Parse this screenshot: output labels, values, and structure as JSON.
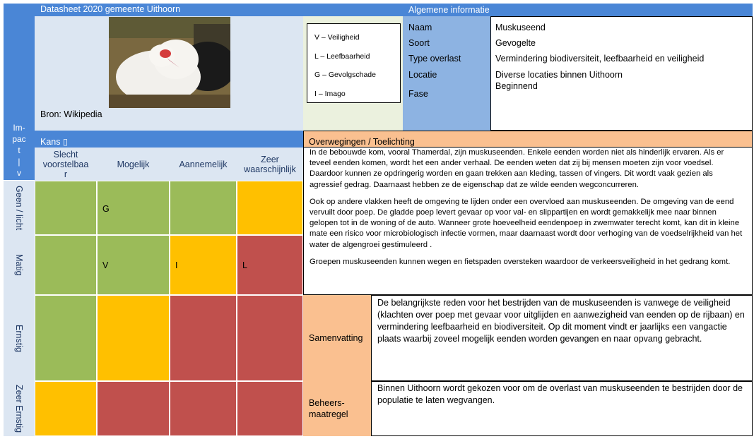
{
  "header": {
    "title": "Datasheet 2020 gemeente Uithoorn",
    "info_title": "Algemene informatie"
  },
  "photo": {
    "caption": "Bron: Wikipedia",
    "subject": "muskuseend-photo"
  },
  "legend": {
    "items": [
      "V – Veiligheid",
      "L – Leefbaarheid",
      "G – Gevolgschade",
      "I – Imago"
    ]
  },
  "info": {
    "labels": [
      "Naam",
      "Soort",
      "Type overlast",
      "Locatie",
      "Fase"
    ],
    "values": [
      "Muskuseend",
      "Gevogelte",
      "Vermindering biodiversiteit, leefbaarheid en veiligheid",
      "Diverse locaties binnen Uithoorn",
      "Beginnend"
    ]
  },
  "matrix": {
    "impact_label": "Im-\npac\nt\n|\nv",
    "kans_label": "Kans ▯",
    "columns": [
      "Slecht\nvoorstelbaa\nr",
      "Mogelijk",
      "Aannemelijk",
      "Zeer\nwaarschijnlijk"
    ],
    "rows": [
      "Geen / licht",
      "Matig",
      "Ernstig",
      "Zeer Ernstig"
    ],
    "cells": [
      [
        "",
        "G",
        "",
        ""
      ],
      [
        "",
        "V",
        "I",
        "L"
      ],
      [
        "",
        "",
        "",
        ""
      ],
      [
        "",
        "",
        "",
        ""
      ]
    ],
    "colors": {
      "green": "#9bbb59",
      "yellow": "#ffc000",
      "red": "#c0504d"
    }
  },
  "considerations": {
    "title": "Overwegingen / Toelichting",
    "paragraphs": [
      "In de bebouwde kom, vooral Thamerdal, zijn muskuseenden. Enkele eenden worden niet als hinderlijk ervaren. Als er teveel eenden komen, wordt het een ander verhaal. De eenden weten dat zij bij mensen moeten zijn voor voedsel. Daardoor kunnen ze opdringerig worden en gaan trekken aan kleding, tassen of vingers. Dit wordt vaak gezien als agressief gedrag. Daarnaast hebben ze de eigenschap dat ze wilde eenden wegconcurreren.",
      "Ook op andere vlakken heeft de omgeving te lijden onder een overvloed aan muskuseenden. De omgeving van de eend vervuilt door poep. De gladde poep levert gevaar op voor val- en slippartijen en wordt gemakkelijk mee naar binnen gelopen tot in de woning of de auto. Wanneer grote hoeveelheid eendenpoep in zwemwater terecht komt, kan dit in kleine mate een risico voor microbiologisch infectie vormen, maar daarnaast wordt door verhoging van de voedselrijkheid van het water de algengroei gestimuleerd .",
      "Groepen muskuseenden kunnen wegen en fietspaden oversteken waardoor de verkeersveiligheid in het gedrang komt."
    ]
  },
  "summary": {
    "label": "Samenvatting",
    "text": "De belangrijkste reden voor het bestrijden van de muskuseenden is vanwege de veiligheid (klachten over poep met gevaar voor uitglijden en aanwezigheid van eenden op de rijbaan) en vermindering leefbaarheid en biodiversiteit. Op dit moment vindt er jaarlijks een vangactie plaats waarbij zoveel mogelijk eenden worden gevangen en naar opvang gebracht."
  },
  "measure": {
    "label": "Beheers-\nmaatregel",
    "text": "Binnen Uithoorn wordt gekozen voor om de overlast van muskuseenden te bestrijden door de populatie te laten wegvangen."
  }
}
